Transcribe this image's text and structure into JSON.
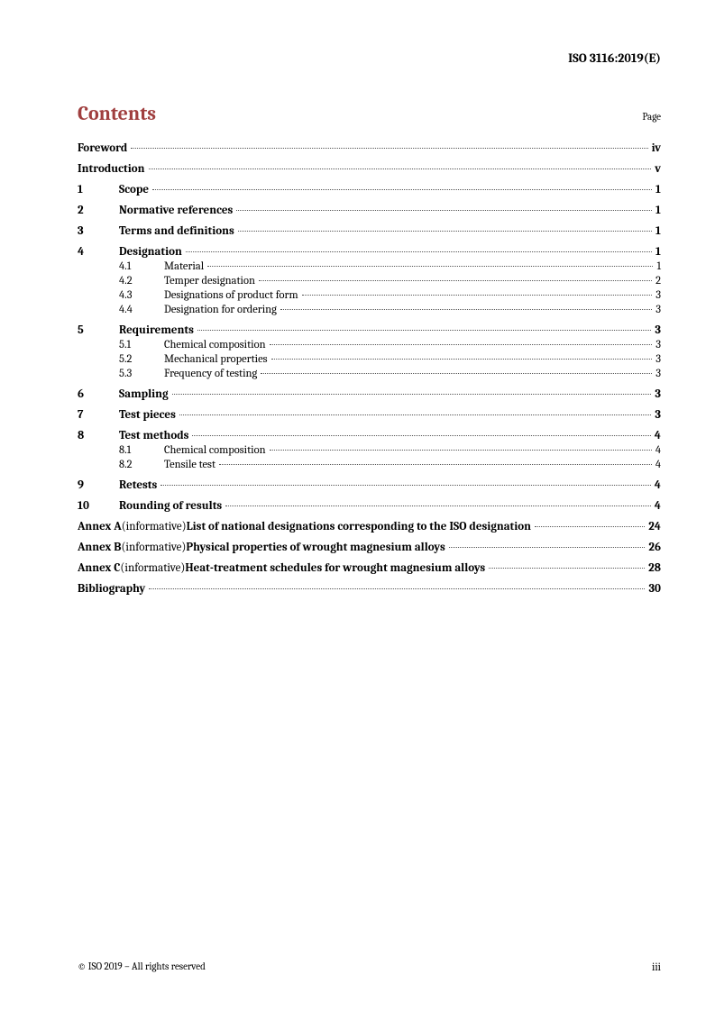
{
  "header": "ISO 3116:2019(E)",
  "contents_title": "Contents",
  "page_label": "Page",
  "entries": {
    "foreword": {
      "title": "Foreword",
      "page": "iv"
    },
    "introduction": {
      "title": "Introduction",
      "page": "v"
    },
    "s1": {
      "num": "1",
      "title": "Scope",
      "page": "1"
    },
    "s2": {
      "num": "2",
      "title": "Normative references",
      "page": "1"
    },
    "s3": {
      "num": "3",
      "title": "Terms and definitions",
      "page": "1"
    },
    "s4": {
      "num": "4",
      "title": "Designation",
      "page": "1"
    },
    "s4_1": {
      "num": "4.1",
      "title": "Material",
      "page": "1"
    },
    "s4_2": {
      "num": "4.2",
      "title": "Temper designation",
      "page": "2"
    },
    "s4_3": {
      "num": "4.3",
      "title": "Designations of product form",
      "page": "3"
    },
    "s4_4": {
      "num": "4.4",
      "title": "Designation for ordering",
      "page": "3"
    },
    "s5": {
      "num": "5",
      "title": "Requirements",
      "page": "3"
    },
    "s5_1": {
      "num": "5.1",
      "title": "Chemical composition",
      "page": "3"
    },
    "s5_2": {
      "num": "5.2",
      "title": "Mechanical properties",
      "page": "3"
    },
    "s5_3": {
      "num": "5.3",
      "title": "Frequency of testing",
      "page": "3"
    },
    "s6": {
      "num": "6",
      "title": "Sampling",
      "page": "3"
    },
    "s7": {
      "num": "7",
      "title": "Test pieces",
      "page": "3"
    },
    "s8": {
      "num": "8",
      "title": "Test methods",
      "page": "4"
    },
    "s8_1": {
      "num": "8.1",
      "title": "Chemical composition",
      "page": "4"
    },
    "s8_2": {
      "num": "8.2",
      "title": "Tensile test",
      "page": "4"
    },
    "s9": {
      "num": "9",
      "title": "Retests",
      "page": "4"
    },
    "s10": {
      "num": "10",
      "title": "Rounding of results",
      "page": "4"
    },
    "annexA": {
      "label": "Annex A",
      "info": " (informative) ",
      "title": "List of national designations corresponding to the ISO designation",
      "page": "24"
    },
    "annexB": {
      "label": "Annex B",
      "info": " (informative) ",
      "title": "Physical properties of wrought magnesium alloys",
      "page": "26"
    },
    "annexC": {
      "label": "Annex C",
      "info": " (informative) ",
      "title": "Heat-treatment schedules for wrought magnesium alloys",
      "page": "28"
    },
    "bibliography": {
      "title": "Bibliography",
      "page": "30"
    }
  },
  "footer": {
    "left": "© ISO 2019 – All rights reserved",
    "right": "iii"
  }
}
